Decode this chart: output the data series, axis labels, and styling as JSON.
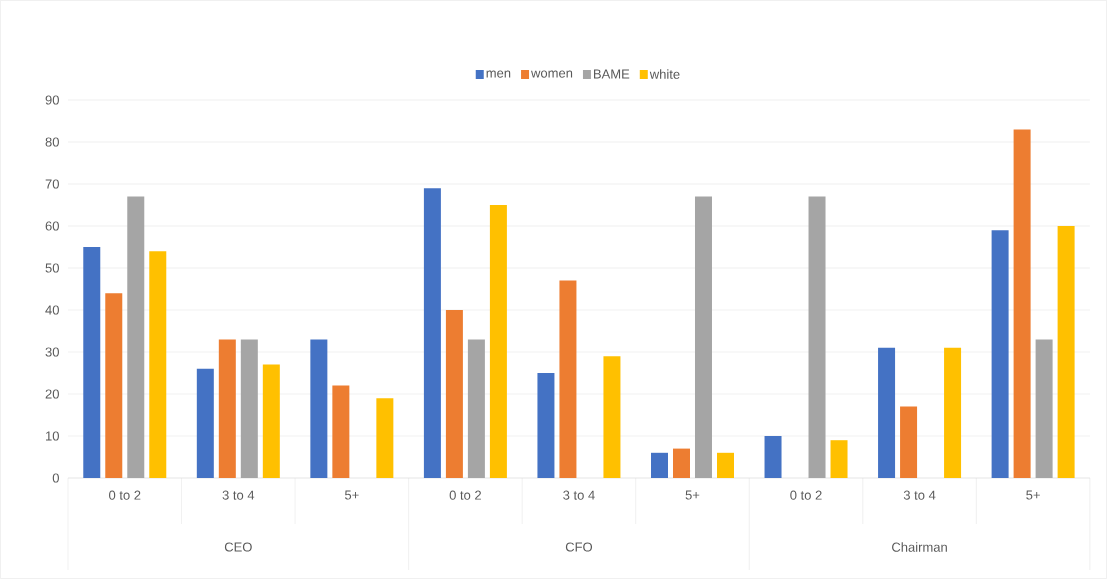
{
  "chart_data": {
    "type": "bar",
    "categories": [
      "0 to 2",
      "3 to 4",
      "5+",
      "0 to 2",
      "3 to 4",
      "5+",
      "0 to 2",
      "3 to 4",
      "5+"
    ],
    "series": [
      {
        "name": "men",
        "color": "#4472c4",
        "values": [
          55,
          26,
          33,
          69,
          25,
          6,
          10,
          31,
          59
        ]
      },
      {
        "name": "women",
        "color": "#ed7d31",
        "values": [
          44,
          33,
          22,
          40,
          47,
          7,
          0,
          17,
          83
        ]
      },
      {
        "name": "BAME",
        "color": "#a5a5a5",
        "values": [
          67,
          33,
          0,
          33,
          0,
          67,
          67,
          0,
          33
        ]
      },
      {
        "name": "white",
        "color": "#ffc000",
        "values": [
          54,
          27,
          19,
          65,
          29,
          6,
          9,
          31,
          60
        ]
      }
    ],
    "annotations": [
      "CEO",
      "CFO",
      "Chairman"
    ],
    "ylim": [
      0,
      90
    ],
    "yticks": [
      0,
      10,
      20,
      30,
      40,
      50,
      60,
      70,
      80,
      90
    ],
    "grid": "y",
    "legend": "top"
  }
}
